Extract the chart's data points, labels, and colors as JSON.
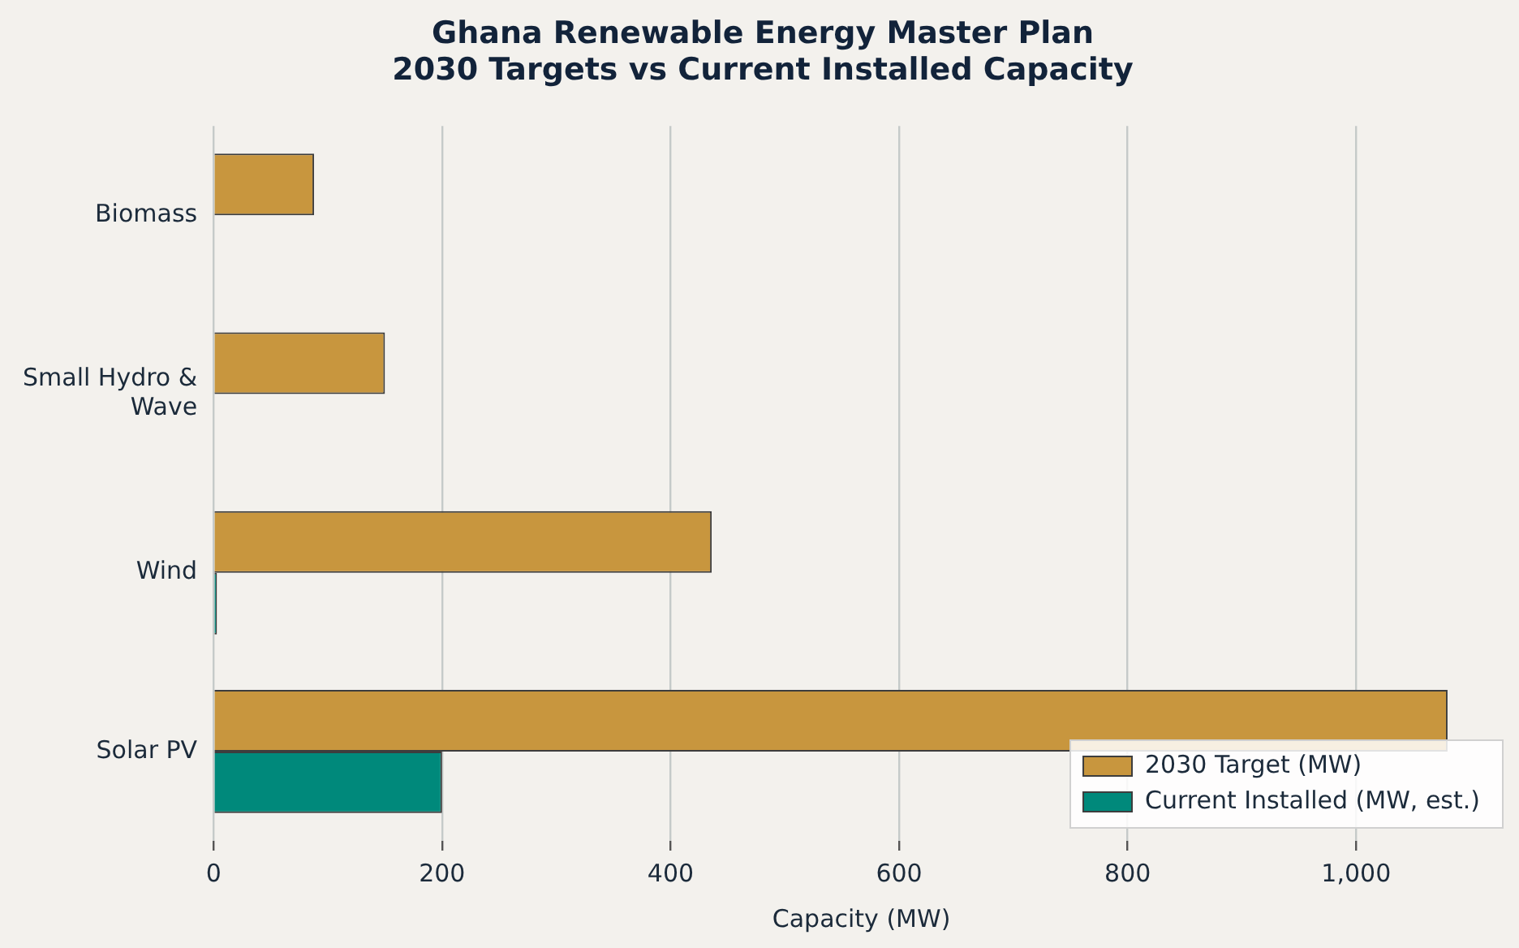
{
  "chart_data": {
    "type": "bar",
    "orientation": "horizontal",
    "title": "Ghana Renewable Energy Master Plan\n2030 Targets vs Current Installed Capacity",
    "xlabel": "Capacity (MW)",
    "categories": [
      "Biomass",
      "Small Hydro & Wave",
      "Wind",
      "Solar PV"
    ],
    "series": [
      {
        "name": "2030 Target (MW)",
        "color": "#c8963e",
        "values": [
          88,
          150,
          436,
          1080
        ]
      },
      {
        "name": "Current Installed (MW, est.)",
        "color": "#00897b",
        "values": [
          0,
          0,
          3,
          200
        ]
      }
    ],
    "xlim": [
      0,
      1134
    ],
    "xticks": [
      0,
      200,
      400,
      600,
      800,
      {
        "value": 1000,
        "label": "1,000"
      }
    ],
    "grid": "x",
    "legend": "bottom right"
  }
}
